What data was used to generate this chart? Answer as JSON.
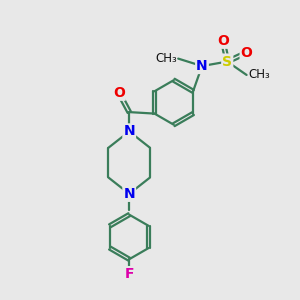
{
  "bg_color": "#e8e8e8",
  "bond_color": "#3a7d5a",
  "atom_colors": {
    "N": "#0000ee",
    "O": "#ee0000",
    "S": "#cccc00",
    "F": "#dd00aa",
    "C": "#000000"
  },
  "font_size": 10,
  "lw": 1.6,
  "doffset": 0.055,
  "r_benzene": 0.75,
  "r_fluoro": 0.75
}
